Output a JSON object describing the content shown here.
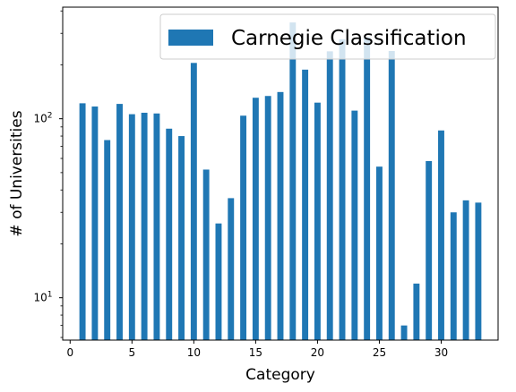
{
  "chart_data": {
    "type": "bar",
    "scale_y": "log",
    "xlabel": "Category",
    "ylabel": "# of Universities",
    "xlim": [
      -0.6,
      34.6
    ],
    "ylim": [
      5.8,
      420
    ],
    "x_ticks": [
      0,
      5,
      10,
      15,
      20,
      25,
      30
    ],
    "x_tick_labels": [
      "0",
      "5",
      "10",
      "15",
      "20",
      "25",
      "30"
    ],
    "y_major_ticks": [
      10,
      100
    ],
    "y_tick_labels": [
      "10¹",
      "10²"
    ],
    "y_tick_base": "10",
    "y_tick_exps": [
      "1",
      "2"
    ],
    "y_minor_ticks": [
      6,
      7,
      8,
      9,
      20,
      30,
      40,
      50,
      60,
      70,
      80,
      90,
      200,
      300,
      400
    ],
    "bar_width": 0.5,
    "color": "#1f77b4",
    "series": [
      {
        "name": "Carnegie Classification",
        "x": [
          1,
          2,
          3,
          4,
          5,
          6,
          7,
          8,
          9,
          10,
          11,
          12,
          13,
          14,
          15,
          16,
          17,
          18,
          19,
          20,
          21,
          22,
          23,
          24,
          25,
          26,
          27,
          28,
          29,
          30,
          31,
          32,
          33
        ],
        "values": [
          122,
          117,
          76,
          121,
          106,
          108,
          107,
          88,
          80,
          205,
          52,
          26,
          36,
          104,
          131,
          134,
          141,
          345,
          188,
          123,
          238,
          278,
          111,
          285,
          54,
          239,
          7,
          12,
          58,
          86,
          30,
          35,
          34
        ]
      }
    ],
    "legend": {
      "position": "top-right",
      "entries": [
        "Carnegie Classification"
      ]
    }
  }
}
